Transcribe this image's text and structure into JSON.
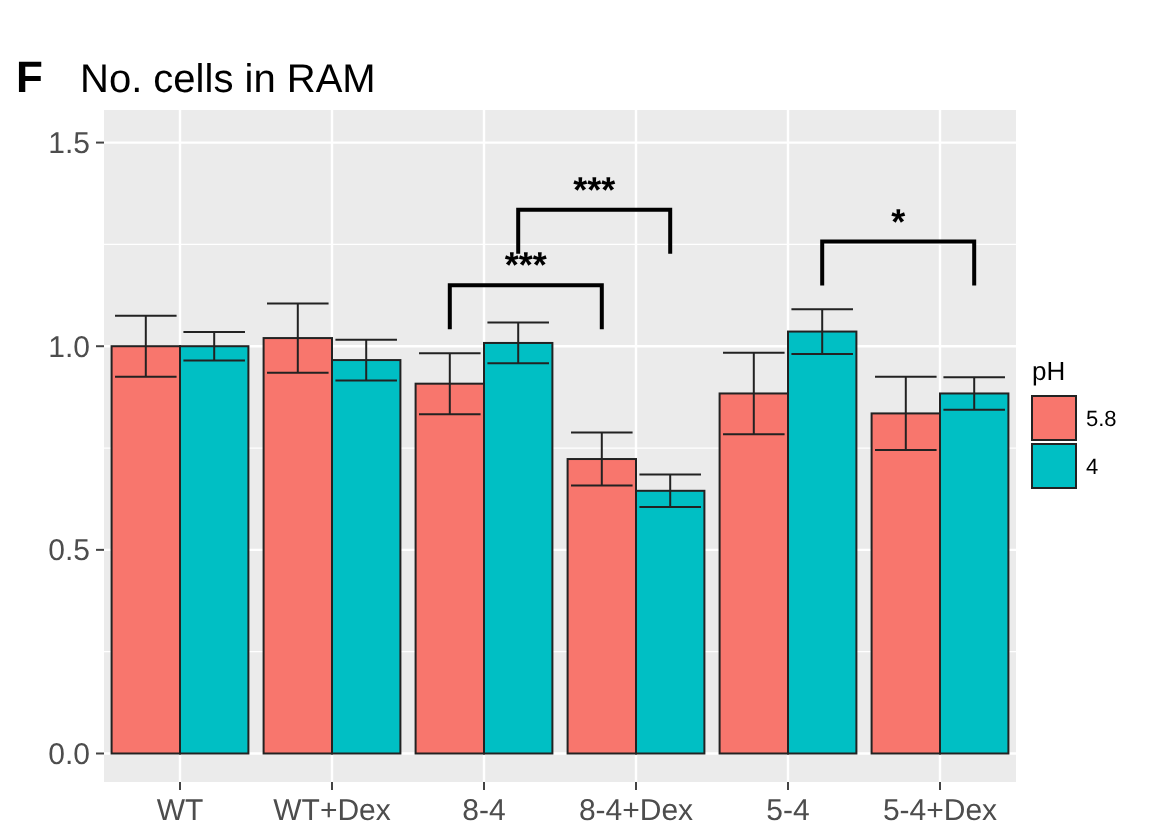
{
  "chart_data": {
    "type": "bar",
    "title": "No. cells in RAM",
    "legend_title": "pH",
    "categories": [
      "WT",
      "WT+Dex",
      "8-4",
      "8-4+Dex",
      "5-4",
      "5-4+Dex"
    ],
    "series": [
      {
        "name": "5.8",
        "color": "#f8766d",
        "values": [
          1.0,
          1.02,
          0.908,
          0.723,
          0.884,
          0.835
        ],
        "errors": [
          0.075,
          0.085,
          0.075,
          0.065,
          0.1,
          0.09
        ]
      },
      {
        "name": "4",
        "color": "#00bfc4",
        "values": [
          1.0,
          0.966,
          1.008,
          0.645,
          1.036,
          0.884
        ],
        "errors": [
          0.035,
          0.05,
          0.05,
          0.04,
          0.055,
          0.04
        ]
      }
    ],
    "ylim": [
      -0.07,
      1.58
    ],
    "yticks": [
      {
        "value": 0,
        "label": "0.0"
      },
      {
        "value": 0.5,
        "label": "0.5"
      },
      {
        "value": 1,
        "label": "1.0"
      },
      {
        "value": 1.5,
        "label": "1.5"
      }
    ],
    "grid": true,
    "legend": "right",
    "annotations": [
      "F",
      "***",
      "***",
      "*"
    ]
  }
}
